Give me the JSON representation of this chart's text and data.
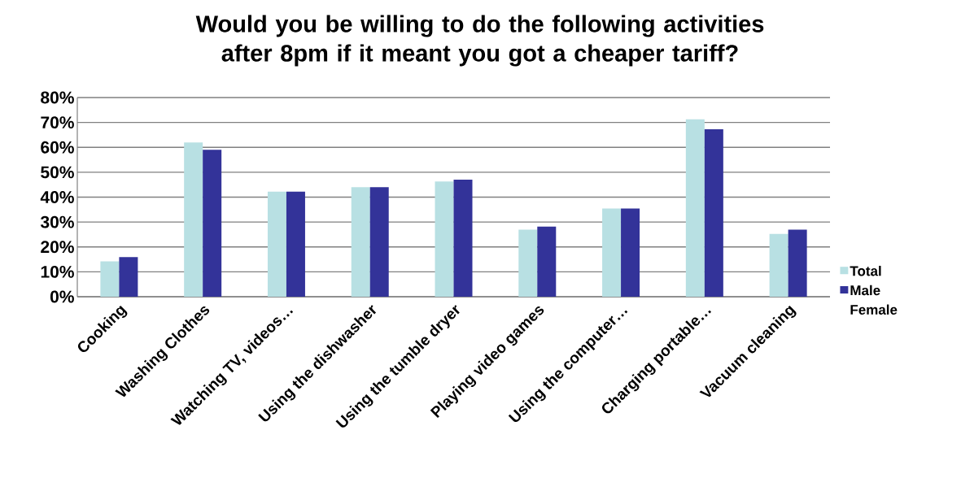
{
  "chart_data": {
    "type": "bar",
    "title": "Would you be willing to do the following activities after 8pm if it meant you got a cheaper tariff?",
    "categories": [
      "Cooking",
      "Washing Clothes",
      "Watching TV, videos…",
      "Using the dishwasher",
      "Using the tumble dryer",
      "Playing video games",
      "Using the computer…",
      "Charging portable…",
      "Vacuum cleaning"
    ],
    "series": [
      {
        "name": "Total",
        "color": "#b8e0e3",
        "values": [
          14.2,
          62,
          42.2,
          44,
          46.3,
          26.9,
          35.4,
          71.3,
          25.2
        ]
      },
      {
        "name": "Male",
        "color": "#333399",
        "values": [
          15.9,
          59,
          42.2,
          44,
          47,
          28.2,
          35.4,
          67.3,
          26.9
        ]
      },
      {
        "name": "Female",
        "values": [
          null,
          null,
          null,
          null,
          null,
          null,
          null,
          null,
          null
        ]
      }
    ],
    "ylim": [
      0,
      80
    ],
    "yticks": [
      {
        "value": 0,
        "label": "0%"
      },
      {
        "value": 10,
        "label": "10%"
      },
      {
        "value": 20,
        "label": "20%"
      },
      {
        "value": 30,
        "label": "30%"
      },
      {
        "value": 40,
        "label": "40%"
      },
      {
        "value": 50,
        "label": "50%"
      },
      {
        "value": 60,
        "label": "60%"
      },
      {
        "value": 70,
        "label": "70%"
      },
      {
        "value": 80,
        "label": "80%"
      }
    ],
    "grid": "y",
    "legend": "right"
  }
}
